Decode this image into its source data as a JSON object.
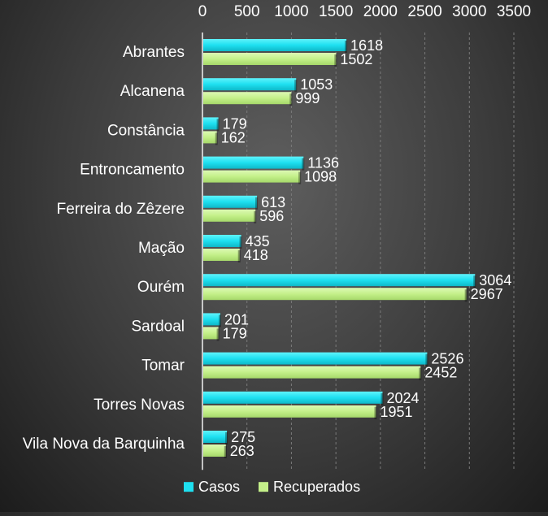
{
  "chart_data": {
    "type": "bar",
    "orientation": "horizontal",
    "title": "",
    "xlabel": "",
    "ylabel": "",
    "xlim": [
      0,
      3500
    ],
    "x_ticks": [
      0,
      500,
      1000,
      1500,
      2000,
      2500,
      3000,
      3500
    ],
    "x_axis_position": "top",
    "grid": true,
    "legend_position": "bottom",
    "categories": [
      "Abrantes",
      "Alcanena",
      "Constância",
      "Entroncamento",
      "Ferreira do Zêzere",
      "Mação",
      "Ourém",
      "Sardoal",
      "Tomar",
      "Torres Novas",
      "Vila Nova da Barquinha"
    ],
    "series": [
      {
        "name": "Casos",
        "color": "#1ee0f0",
        "values": [
          1618,
          1053,
          179,
          1136,
          613,
          435,
          3064,
          201,
          2526,
          2024,
          275
        ]
      },
      {
        "name": "Recuperados",
        "color": "#c4f08a",
        "values": [
          1502,
          999,
          162,
          1098,
          596,
          418,
          2967,
          179,
          2452,
          1951,
          263
        ]
      }
    ]
  }
}
